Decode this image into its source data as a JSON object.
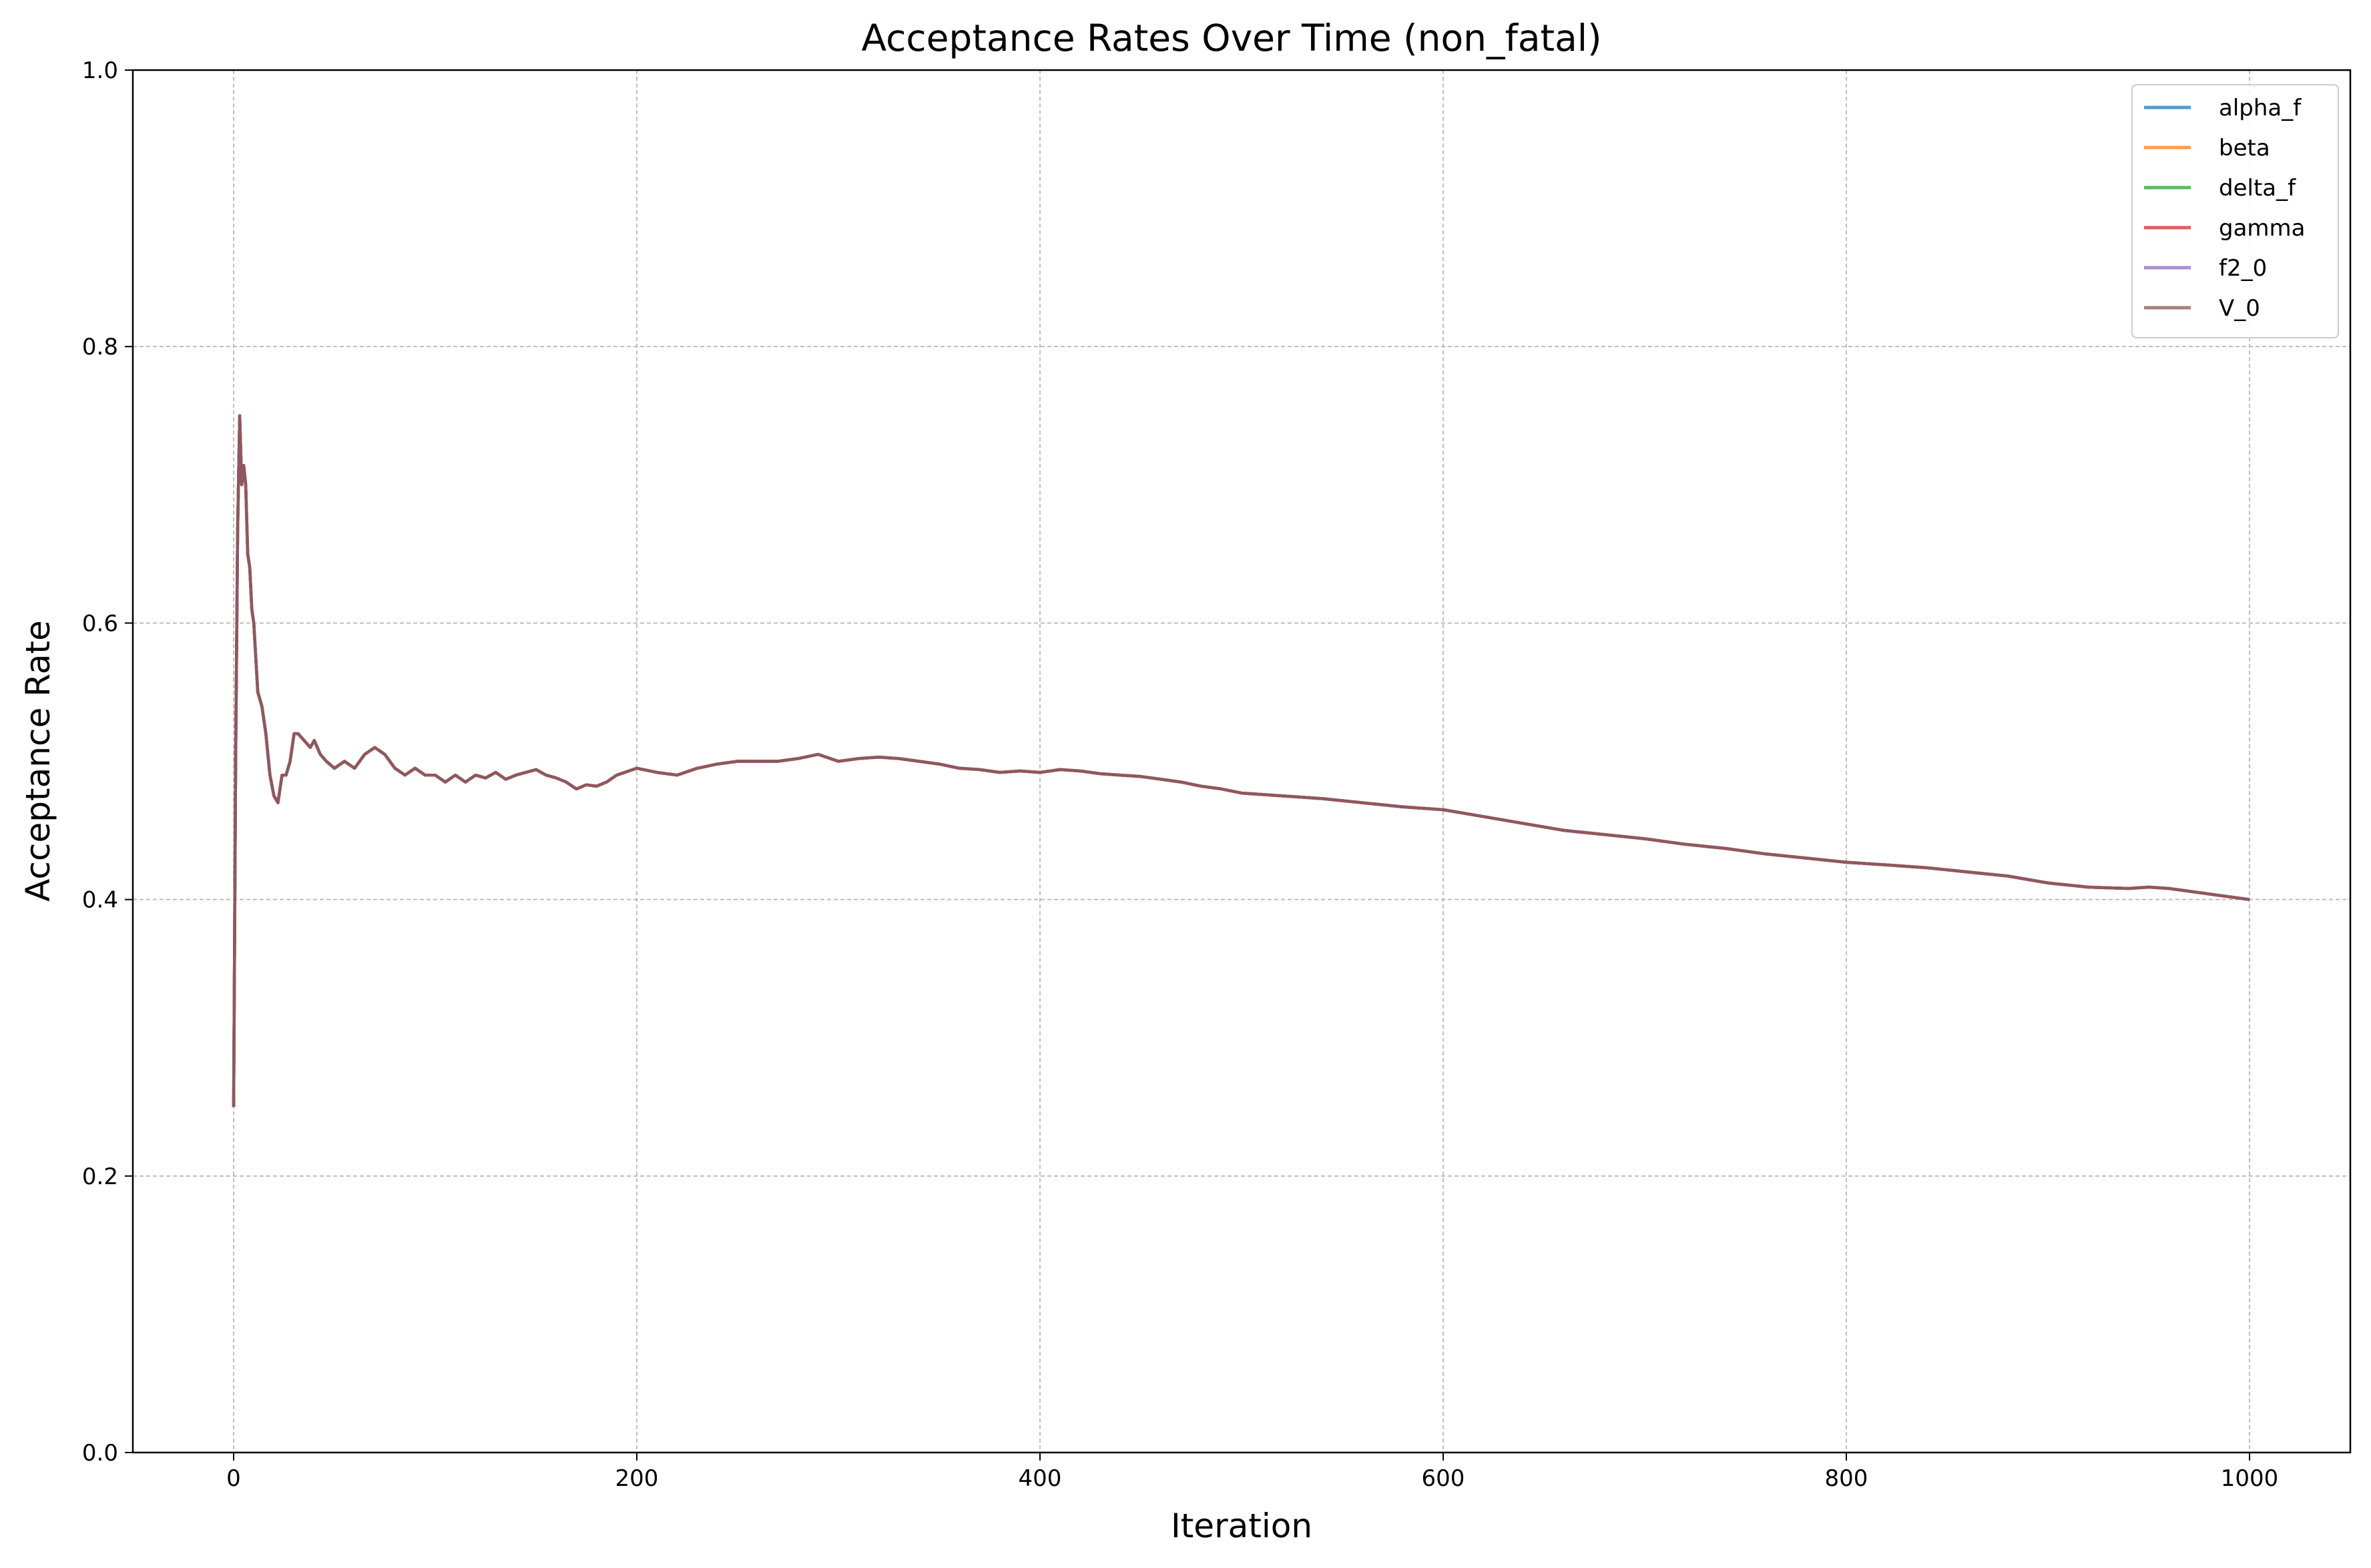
{
  "chart_data": {
    "type": "line",
    "title": "Acceptance Rates Over Time (non_fatal)",
    "xlabel": "Iteration",
    "ylabel": "Acceptance Rate",
    "xlim": [
      -50,
      1050
    ],
    "ylim": [
      0.0,
      1.0
    ],
    "xticks": [
      0,
      200,
      400,
      600,
      800,
      1000
    ],
    "xtick_labels": [
      "0",
      "200",
      "400",
      "600",
      "800",
      "1000"
    ],
    "yticks": [
      0.0,
      0.2,
      0.4,
      0.6,
      0.8,
      1.0
    ],
    "ytick_labels": [
      "0.0",
      "0.2",
      "0.4",
      "0.6",
      "0.8",
      "1.0"
    ],
    "grid": true,
    "legend_position": "top-right",
    "x": [
      0,
      1,
      2,
      3,
      4,
      5,
      6,
      7,
      8,
      9,
      10,
      12,
      14,
      16,
      18,
      20,
      22,
      24,
      26,
      28,
      30,
      32,
      35,
      38,
      40,
      43,
      46,
      50,
      55,
      60,
      65,
      70,
      75,
      80,
      85,
      90,
      95,
      100,
      105,
      110,
      115,
      120,
      125,
      130,
      135,
      140,
      145,
      150,
      155,
      160,
      165,
      170,
      175,
      180,
      185,
      190,
      200,
      210,
      220,
      230,
      240,
      250,
      260,
      270,
      280,
      290,
      300,
      310,
      320,
      330,
      340,
      350,
      360,
      370,
      380,
      390,
      400,
      410,
      420,
      430,
      440,
      450,
      460,
      470,
      480,
      490,
      500,
      520,
      540,
      560,
      580,
      600,
      620,
      640,
      660,
      680,
      700,
      720,
      740,
      760,
      780,
      800,
      820,
      840,
      860,
      880,
      900,
      920,
      940,
      950,
      960,
      980,
      1000
    ],
    "values": [
      0.25,
      0.5,
      0.667,
      0.75,
      0.7,
      0.714,
      0.7,
      0.65,
      0.64,
      0.61,
      0.6,
      0.55,
      0.54,
      0.52,
      0.49,
      0.475,
      0.47,
      0.49,
      0.49,
      0.5,
      0.52,
      0.52,
      0.515,
      0.51,
      0.515,
      0.505,
      0.5,
      0.495,
      0.5,
      0.495,
      0.505,
      0.51,
      0.505,
      0.495,
      0.49,
      0.495,
      0.49,
      0.49,
      0.485,
      0.49,
      0.485,
      0.49,
      0.488,
      0.492,
      0.487,
      0.49,
      0.492,
      0.494,
      0.49,
      0.488,
      0.485,
      0.48,
      0.483,
      0.482,
      0.485,
      0.49,
      0.495,
      0.492,
      0.49,
      0.495,
      0.498,
      0.5,
      0.5,
      0.5,
      0.502,
      0.505,
      0.5,
      0.502,
      0.503,
      0.502,
      0.5,
      0.498,
      0.495,
      0.494,
      0.492,
      0.493,
      0.492,
      0.494,
      0.493,
      0.491,
      0.49,
      0.489,
      0.487,
      0.485,
      0.482,
      0.48,
      0.477,
      0.475,
      0.473,
      0.47,
      0.467,
      0.465,
      0.46,
      0.455,
      0.45,
      0.447,
      0.444,
      0.44,
      0.437,
      0.433,
      0.43,
      0.427,
      0.425,
      0.423,
      0.42,
      0.417,
      0.412,
      0.409,
      0.408,
      0.409,
      0.408,
      0.404,
      0.4
    ],
    "series": [
      {
        "name": "alpha_f",
        "color": "#1f77b4"
      },
      {
        "name": "beta",
        "color": "#ff7f0e"
      },
      {
        "name": "delta_f",
        "color": "#2ca02c"
      },
      {
        "name": "gamma",
        "color": "#d62728"
      },
      {
        "name": "f2_0",
        "color": "#9467bd"
      },
      {
        "name": "V_0",
        "color": "#8c564b"
      }
    ]
  }
}
